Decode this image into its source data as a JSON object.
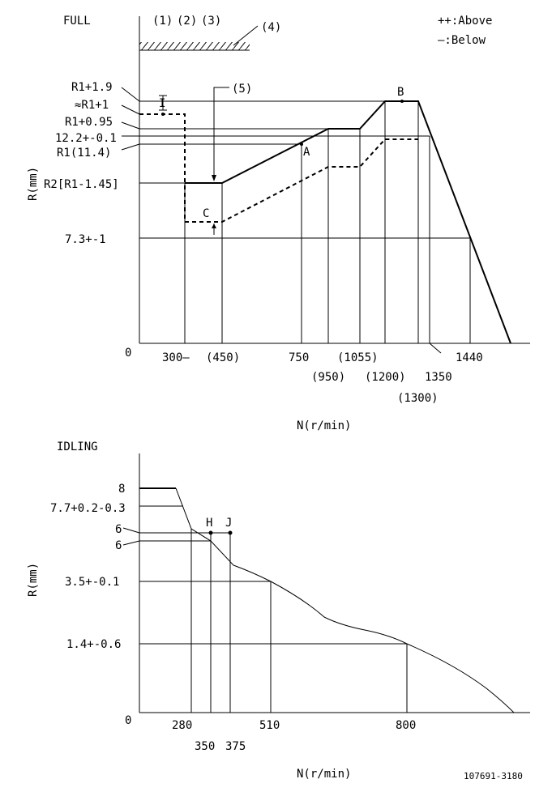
{
  "legend": {
    "above": "++:Above",
    "below": "—:Below"
  },
  "full": {
    "title": "FULL",
    "top_labels": [
      "(1)",
      "(2)",
      "(3)"
    ],
    "hatch_label": "(4)",
    "arrow_label": "(5)",
    "y_axis_label": "R(mm)",
    "x_axis_label": "N(r/min)",
    "origin": "0",
    "y_ticks": [
      "R1+1.9",
      "≈R1+1",
      "R1+0.95",
      "12.2+-0.1",
      "R1(11.4)",
      "R2[R1-1.45]",
      "7.3+-1"
    ],
    "x_ticks": [
      "300—",
      "(450)",
      "750",
      "(950)",
      "(1055)",
      "(1200)",
      "(1300)",
      "1350",
      "1440"
    ],
    "points": [
      "I",
      "A",
      "B",
      "C"
    ]
  },
  "idling": {
    "title": "IDLING",
    "y_axis_label": "R(mm)",
    "x_axis_label": "N(r/min)",
    "origin": "0",
    "y_ticks": [
      "8",
      "7.7+0.2-0.3",
      "6",
      "6",
      "3.5+-0.1",
      "1.4+-0.6"
    ],
    "x_ticks": [
      "280",
      "350",
      "375",
      "510",
      "800"
    ],
    "points": [
      "H",
      "J"
    ]
  },
  "drawing_number": "107691-3180"
}
